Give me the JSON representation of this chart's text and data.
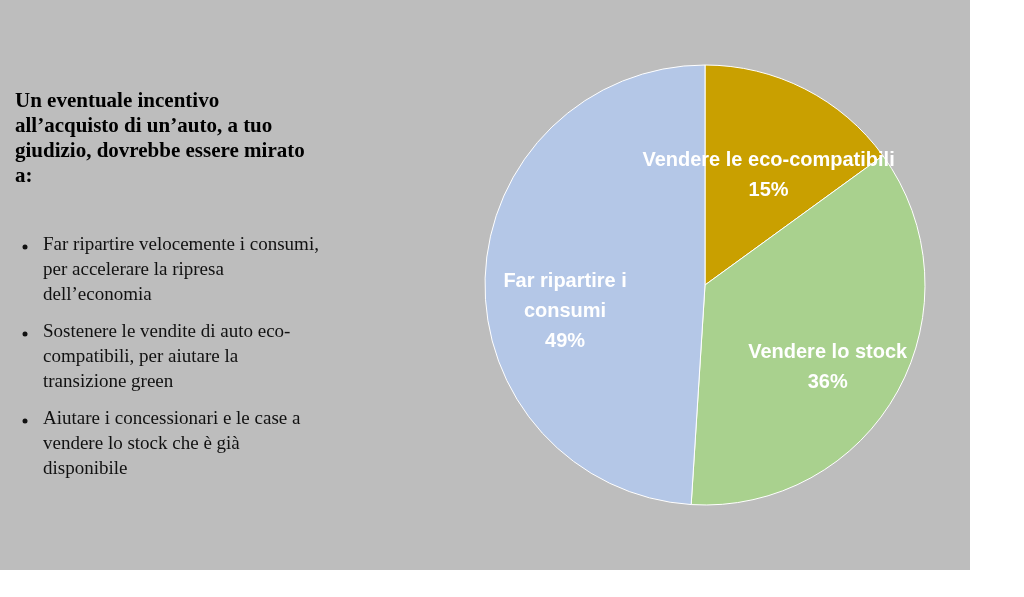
{
  "chart_data": {
    "type": "pie",
    "title": "Un eventuale incentivo all’acquisto di un’auto, a tuo giudizio, dovrebbe essere mirato a:",
    "annotations": [
      "Far ripartire velocemente i consumi, per accelerare la ripresa dell’economia",
      "Sostenere le vendite di auto eco-compatibili, per aiutare la transizione green",
      "Aiutare i concessionari e le case a vendere lo stock che è già disponibile"
    ],
    "categories": [
      "Vendere le eco-compatibili",
      "Vendere lo stock",
      "Far ripartire i\nconsumi"
    ],
    "values": [
      15,
      36,
      49
    ],
    "value_labels": [
      "15%",
      "36%",
      "49%"
    ],
    "colors": [
      "#c9a000",
      "#a9d18e",
      "#b4c7e7"
    ],
    "legend": false
  }
}
